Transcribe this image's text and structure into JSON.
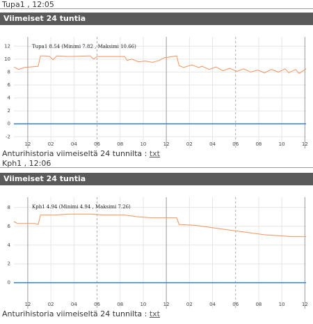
{
  "panels": [
    {
      "heading": "Tupa1 , 12:05",
      "bar_title": "Viimeiset 24 tuntia",
      "footer": "Anturihistoria viimeiseltä 24 tunnilta :",
      "link": "txt"
    },
    {
      "heading": "Kph1 , 12:06",
      "bar_title": "Viimeiset 24 tuntia",
      "footer": "Anturihistoria viimeiseltä 24 tunnilta :",
      "link": "txt"
    }
  ],
  "chart_data": [
    {
      "type": "line",
      "annotation": "Tupa1 8.54 (Minimi 7.82 , Maksimi 10.66)",
      "x": [
        -1.2,
        -0.8,
        -0.3,
        0.3,
        0.9,
        1.1,
        1.5,
        1.9,
        2.2,
        2.5,
        3.6,
        5.4,
        5.7,
        6.0,
        8.4,
        8.6,
        9.0,
        9.6,
        10.2,
        10.8,
        11.4,
        11.8,
        12.9,
        13.1,
        13.5,
        14.2,
        14.8,
        15.1,
        15.7,
        16.3,
        16.9,
        17.5,
        18.1,
        18.7,
        19.3,
        19.9,
        20.5,
        21.1,
        21.7,
        22.3,
        22.6,
        23.2,
        23.5,
        24.1
      ],
      "series": [
        {
          "color": "#f5925a",
          "values": [
            8.8,
            8.4,
            8.7,
            8.8,
            8.9,
            10.5,
            10.5,
            10.4,
            9.9,
            10.5,
            10.4,
            10.5,
            10.0,
            10.4,
            10.4,
            9.8,
            10.0,
            9.6,
            9.7,
            9.5,
            9.8,
            10.2,
            10.5,
            9.0,
            8.7,
            9.1,
            8.7,
            8.9,
            8.4,
            8.8,
            8.2,
            8.6,
            8.1,
            8.5,
            8.0,
            8.3,
            7.9,
            8.4,
            8.0,
            8.5,
            7.9,
            8.4,
            7.8,
            8.5
          ]
        },
        {
          "color": "#3d85d8",
          "values": [
            0,
            0,
            0,
            0,
            0,
            0,
            0,
            0,
            0,
            0,
            0,
            0,
            0,
            0,
            0,
            0,
            0,
            0,
            0,
            0,
            0,
            0,
            0,
            0,
            0,
            0,
            0,
            0,
            0,
            0,
            0,
            0,
            0,
            0,
            0,
            0,
            0,
            0,
            0,
            0,
            0,
            0,
            0,
            0
          ]
        }
      ],
      "xlim": [
        -1.2,
        24.1
      ],
      "ylim": [
        -2.4,
        13
      ],
      "xticks": [
        {
          "value": 0,
          "label": "12"
        },
        {
          "value": 2,
          "label": "02"
        },
        {
          "value": 4,
          "label": "04"
        },
        {
          "value": 6,
          "label": "06"
        },
        {
          "value": 8,
          "label": "08"
        },
        {
          "value": 10,
          "label": "10"
        },
        {
          "value": 12,
          "label": "12"
        },
        {
          "value": 14,
          "label": "02"
        },
        {
          "value": 16,
          "label": "04"
        },
        {
          "value": 18,
          "label": "06"
        },
        {
          "value": 20,
          "label": "08"
        },
        {
          "value": 22,
          "label": "10"
        },
        {
          "value": 24,
          "label": "12"
        }
      ],
      "yticks": [
        -2,
        0,
        2,
        4,
        6,
        8,
        10,
        12
      ],
      "grid": true
    },
    {
      "type": "line",
      "annotation": "Kph1 4.94 (Minimi 4.94 , Maksimi 7.26)",
      "x": [
        -1.2,
        -0.9,
        0.6,
        0.9,
        1.1,
        2.4,
        3.6,
        5.4,
        6.6,
        8.4,
        9.6,
        10.8,
        12.9,
        13.1,
        14.5,
        15.7,
        17.5,
        19.3,
        20.5,
        21.7,
        22.9,
        24.1
      ],
      "series": [
        {
          "color": "#f5925a",
          "values": [
            6.5,
            6.3,
            6.3,
            6.2,
            7.2,
            7.2,
            7.3,
            7.3,
            7.2,
            7.2,
            7.0,
            6.9,
            6.9,
            6.2,
            6.1,
            5.9,
            5.6,
            5.3,
            5.1,
            5.0,
            4.9,
            4.9
          ]
        },
        {
          "color": "#3d85d8",
          "values": [
            0,
            0,
            0,
            0,
            0,
            0,
            0,
            0,
            0,
            0,
            0,
            0,
            0,
            0,
            0,
            0,
            0,
            0,
            0,
            0,
            0,
            0
          ]
        }
      ],
      "xlim": [
        -1.2,
        24.1
      ],
      "ylim": [
        -1.8,
        8.8
      ],
      "xticks": [
        {
          "value": 0,
          "label": "12"
        },
        {
          "value": 2,
          "label": "02"
        },
        {
          "value": 4,
          "label": "04"
        },
        {
          "value": 6,
          "label": "06"
        },
        {
          "value": 8,
          "label": "08"
        },
        {
          "value": 10,
          "label": "10"
        },
        {
          "value": 12,
          "label": "12"
        },
        {
          "value": 14,
          "label": "02"
        },
        {
          "value": 16,
          "label": "04"
        },
        {
          "value": 18,
          "label": "06"
        },
        {
          "value": 20,
          "label": "08"
        },
        {
          "value": 22,
          "label": "10"
        },
        {
          "value": 24,
          "label": "12"
        }
      ],
      "yticks": [
        0,
        2,
        4,
        6,
        8
      ],
      "grid": true
    }
  ]
}
